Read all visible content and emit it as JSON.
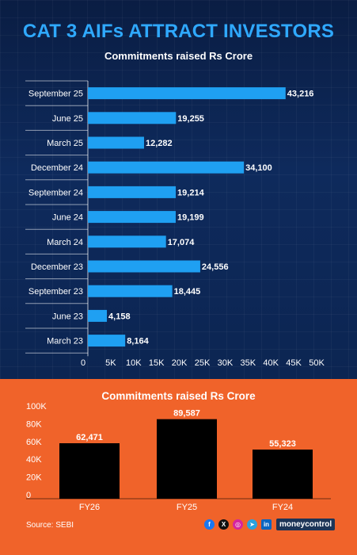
{
  "title": "CAT 3 AIFs ATTRACT INVESTORS",
  "source": "Source: SEBI",
  "brand": "moneycontrol",
  "colors": {
    "top_bar": "#1fa0f2",
    "bottom_bar": "#000000",
    "title": "#2fa9ff",
    "orange_bg": "#f0632a",
    "navy_bg": "#0d2147"
  },
  "icons": [
    "facebook-icon",
    "x-icon",
    "instagram-icon",
    "telegram-icon",
    "linkedin-icon"
  ],
  "chart_data": [
    {
      "type": "bar",
      "orientation": "horizontal",
      "title": "Commitments raised Rs Crore",
      "categories": [
        "September 25",
        "June 25",
        "March 25",
        "December 24",
        "September 24",
        "June 24",
        "March 24",
        "December 23",
        "September 23",
        "June 23",
        "March 23"
      ],
      "values": [
        43216,
        19255,
        12282,
        34100,
        19214,
        19199,
        17074,
        24556,
        18445,
        4158,
        8164
      ],
      "value_labels": [
        "43,216",
        "19,255",
        "12,282",
        "34,100",
        "19,214",
        "19,199",
        "17,074",
        "24,556",
        "18,445",
        "4,158",
        "8,164"
      ],
      "xlim": [
        0,
        50000
      ],
      "xticks": [
        0,
        5000,
        10000,
        15000,
        20000,
        25000,
        30000,
        35000,
        40000,
        45000,
        50000
      ],
      "xtick_labels": [
        "0",
        "5K",
        "10K",
        "15K",
        "20K",
        "25K",
        "30K",
        "35K",
        "40K",
        "45K",
        "50K"
      ],
      "grid": false
    },
    {
      "type": "bar",
      "title": "Commitments raised Rs Crore",
      "categories": [
        "FY26",
        "FY25",
        "FY24"
      ],
      "values": [
        62471,
        89587,
        55323
      ],
      "value_labels": [
        "62,471",
        "89,587",
        "55,323"
      ],
      "ylim": [
        0,
        100000
      ],
      "yticks": [
        0,
        20000,
        40000,
        60000,
        80000,
        100000
      ],
      "ytick_labels": [
        "0",
        "20K",
        "40K",
        "60K",
        "80K",
        "100K"
      ],
      "grid": false
    }
  ]
}
